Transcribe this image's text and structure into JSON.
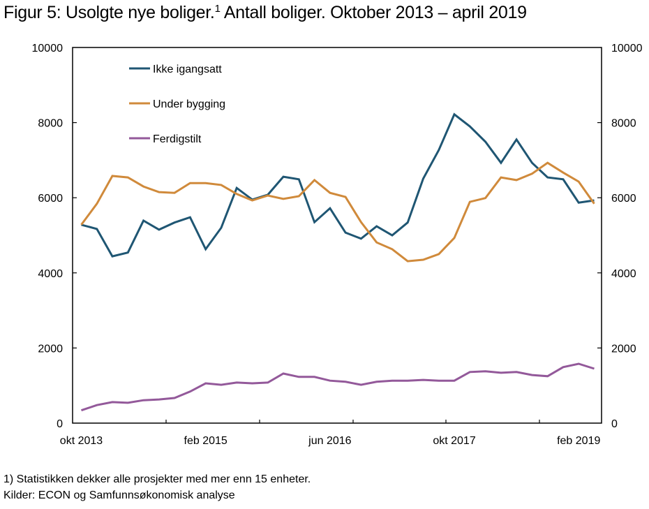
{
  "title": {
    "main": "Figur 5: Usolgte nye boliger.",
    "superscript": "1",
    "rest": " Antall boliger. Oktober 2013 – april 2019"
  },
  "footnotes": {
    "note": "1) Statistikken dekker alle prosjekter med mer enn 15 enheter.",
    "source": "Kilder: ECON og Samfunnsøkonomisk analyse"
  },
  "chart_data": {
    "type": "line",
    "title": "Figur 5: Usolgte nye boliger. Antall boliger. Oktober 2013 – april 2019",
    "xlabel": "",
    "ylabel": "",
    "ylim": [
      0,
      10000
    ],
    "y_ticks": [
      0,
      2000,
      4000,
      6000,
      8000,
      10000
    ],
    "y_ticks_right": [
      0,
      2000,
      4000,
      6000,
      8000,
      10000
    ],
    "x_tick_labels": [
      {
        "index": 0,
        "label": "okt 2013"
      },
      {
        "index": 8,
        "label": "feb 2015"
      },
      {
        "index": 16,
        "label": "jun 2016"
      },
      {
        "index": 24,
        "label": "okt 2017"
      },
      {
        "index": 32,
        "label": "feb 2019"
      }
    ],
    "x": [
      "okt 2013",
      "des 2013",
      "feb 2014",
      "apr 2014",
      "jun 2014",
      "aug 2014",
      "okt 2014",
      "des 2014",
      "feb 2015",
      "apr 2015",
      "jun 2015",
      "aug 2015",
      "okt 2015",
      "des 2015",
      "feb 2016",
      "apr 2016",
      "jun 2016",
      "aug 2016",
      "okt 2016",
      "des 2016",
      "feb 2017",
      "apr 2017",
      "jun 2017",
      "aug 2017",
      "okt 2017",
      "des 2017",
      "feb 2018",
      "apr 2018",
      "jun 2018",
      "aug 2018",
      "okt 2018",
      "des 2018",
      "feb 2019",
      "apr 2019"
    ],
    "grid": false,
    "legend_position": "top-left",
    "series": [
      {
        "name": "Ikke igangsatt",
        "color": "#1f5673",
        "values": [
          5280,
          5170,
          4440,
          4540,
          5390,
          5150,
          5340,
          5480,
          4630,
          5200,
          6260,
          5950,
          6080,
          6560,
          6490,
          5350,
          5720,
          5070,
          4910,
          5240,
          5000,
          5340,
          6510,
          7270,
          8220,
          7900,
          7490,
          6930,
          7550,
          6930,
          6540,
          6490,
          5870,
          5930
        ]
      },
      {
        "name": "Under bygging",
        "color": "#d08a3b",
        "values": [
          5280,
          5840,
          6580,
          6540,
          6300,
          6150,
          6130,
          6390,
          6390,
          6340,
          6100,
          5930,
          6060,
          5970,
          6040,
          6470,
          6130,
          6020,
          5350,
          4810,
          4630,
          4310,
          4350,
          4500,
          4930,
          5890,
          5990,
          6540,
          6470,
          6640,
          6930,
          6670,
          6430,
          5840
        ]
      },
      {
        "name": "Ferdigstilt",
        "color": "#93599a",
        "values": [
          340,
          480,
          560,
          540,
          610,
          630,
          670,
          840,
          1060,
          1020,
          1080,
          1060,
          1080,
          1320,
          1230,
          1230,
          1130,
          1100,
          1020,
          1100,
          1130,
          1130,
          1150,
          1130,
          1130,
          1360,
          1380,
          1340,
          1360,
          1280,
          1250,
          1490,
          1580,
          1450
        ]
      }
    ]
  }
}
